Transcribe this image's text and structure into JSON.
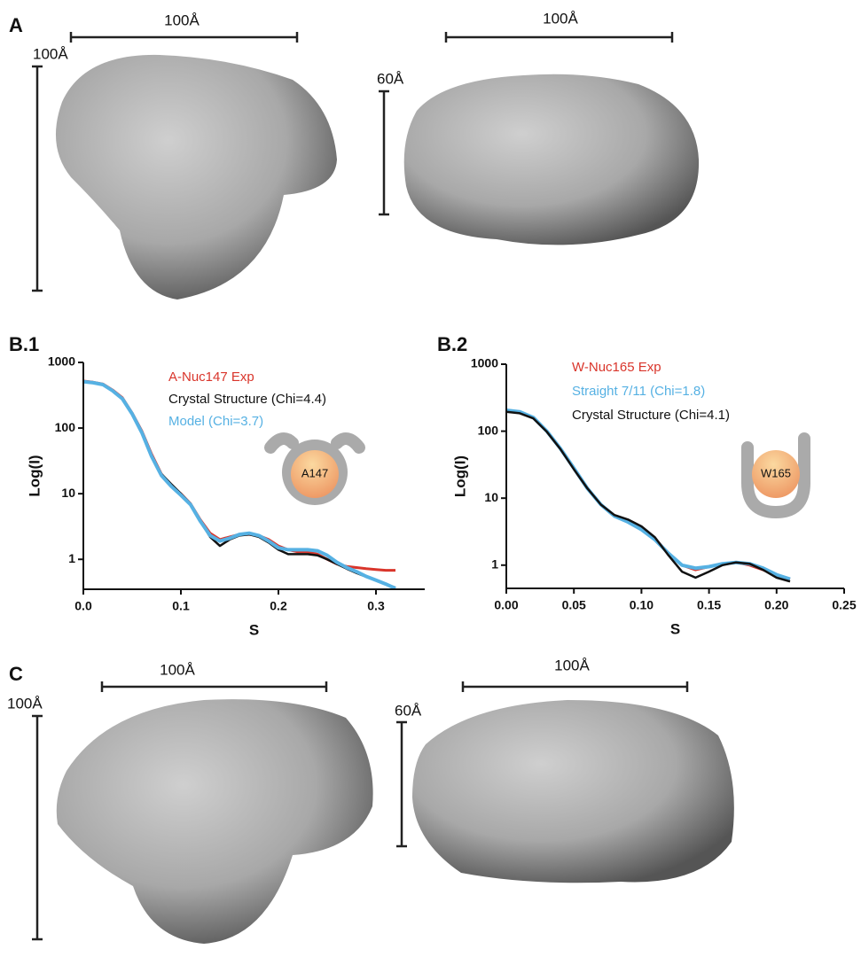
{
  "figure": {
    "panel_a": {
      "label": "A",
      "left_width": "100Å",
      "left_height": "100Å",
      "right_width": "100Å",
      "right_height": "60Å"
    },
    "panel_c": {
      "label": "C",
      "left_width": "100Å",
      "left_height": "100Å",
      "right_width": "100Å",
      "right_height": "60Å"
    }
  },
  "chart_data": [
    {
      "type": "line",
      "panel_label": "B.1",
      "inset_label": "A147",
      "xlabel": "S",
      "ylabel": "Log(I)",
      "yscale": "log",
      "xlim": [
        0,
        0.35
      ],
      "ylim": [
        0.35,
        1000
      ],
      "xticks": [
        {
          "value": 0,
          "label": "0.0"
        },
        0.1,
        0.2,
        0.3
      ],
      "yticks": [
        1,
        10,
        100,
        1000
      ],
      "x": [
        0,
        0.01,
        0.02,
        0.03,
        0.04,
        0.05,
        0.06,
        0.07,
        0.08,
        0.09,
        0.1,
        0.11,
        0.12,
        0.13,
        0.14,
        0.15,
        0.16,
        0.17,
        0.18,
        0.19,
        0.2,
        0.21,
        0.22,
        0.23,
        0.24,
        0.25,
        0.26,
        0.27,
        0.28,
        0.29,
        0.3,
        0.31,
        0.32
      ],
      "series": [
        {
          "name": "A-Nuc147 Exp",
          "color": "#d9352b",
          "values": [
            520,
            500,
            470,
            380,
            290,
            170,
            90,
            40,
            20,
            13,
            10,
            7,
            4,
            2.5,
            2.0,
            2.2,
            2.4,
            2.4,
            2.3,
            2.0,
            1.6,
            1.4,
            1.3,
            1.3,
            1.2,
            1.0,
            0.85,
            0.78,
            0.75,
            0.72,
            0.7,
            0.68,
            0.68
          ]
        },
        {
          "name": "Crystal Structure (Chi=4.4)",
          "color": "#111111",
          "values": [
            510,
            490,
            460,
            370,
            280,
            165,
            85,
            38,
            20,
            14,
            10,
            7,
            3.8,
            2.2,
            1.6,
            2.0,
            2.3,
            2.4,
            2.2,
            1.8,
            1.4,
            1.2,
            1.2,
            1.2,
            1.15,
            1.0,
            0.85,
            0.72,
            0.62,
            0.54,
            0.48,
            0.42,
            0.37
          ]
        },
        {
          "name": "Model (Chi=3.7)",
          "color": "#56b1e3",
          "values": [
            510,
            490,
            460,
            370,
            280,
            165,
            85,
            37,
            19,
            13,
            9.5,
            6.8,
            3.8,
            2.3,
            1.9,
            2.1,
            2.4,
            2.5,
            2.3,
            1.9,
            1.5,
            1.4,
            1.4,
            1.4,
            1.35,
            1.15,
            0.9,
            0.75,
            0.65,
            0.55,
            0.48,
            0.42,
            0.36
          ]
        }
      ]
    },
    {
      "type": "line",
      "panel_label": "B.2",
      "inset_label": "W165",
      "xlabel": "S",
      "ylabel": "Log(I)",
      "yscale": "log",
      "xlim": [
        0,
        0.25
      ],
      "ylim": [
        0.45,
        1000
      ],
      "xticks": [
        {
          "value": 0,
          "label": "0.00"
        },
        0.05,
        {
          "value": 0.1,
          "label": "0.10"
        },
        0.15,
        {
          "value": 0.2,
          "label": "0.20"
        },
        0.25
      ],
      "yticks": [
        1,
        10,
        100,
        1000
      ],
      "x": [
        0,
        0.01,
        0.02,
        0.03,
        0.04,
        0.05,
        0.06,
        0.07,
        0.08,
        0.09,
        0.1,
        0.11,
        0.12,
        0.13,
        0.14,
        0.15,
        0.16,
        0.17,
        0.18,
        0.19,
        0.2,
        0.21
      ],
      "series": [
        {
          "name": "W-Nuc165 Exp",
          "color": "#d9352b",
          "values": [
            200,
            190,
            160,
            100,
            55,
            28,
            14,
            8,
            5.5,
            4.5,
            3.5,
            2.5,
            1.5,
            1.0,
            0.85,
            0.95,
            1.05,
            1.1,
            1.0,
            0.85,
            0.7,
            0.62
          ]
        },
        {
          "name": "Straight 7/11 (Chi=1.8)",
          "color": "#56b1e3",
          "values": [
            205,
            195,
            160,
            100,
            55,
            28,
            14,
            8,
            5.4,
            4.4,
            3.4,
            2.4,
            1.5,
            1.0,
            0.9,
            0.95,
            1.05,
            1.1,
            1.05,
            0.9,
            0.72,
            0.62
          ]
        },
        {
          "name": "Crystal Structure (Chi=4.1)",
          "color": "#111111",
          "values": [
            195,
            185,
            155,
            98,
            54,
            27,
            14,
            8,
            5.6,
            4.8,
            3.8,
            2.6,
            1.4,
            0.8,
            0.65,
            0.8,
            1.0,
            1.1,
            1.05,
            0.85,
            0.65,
            0.57
          ]
        }
      ]
    }
  ]
}
